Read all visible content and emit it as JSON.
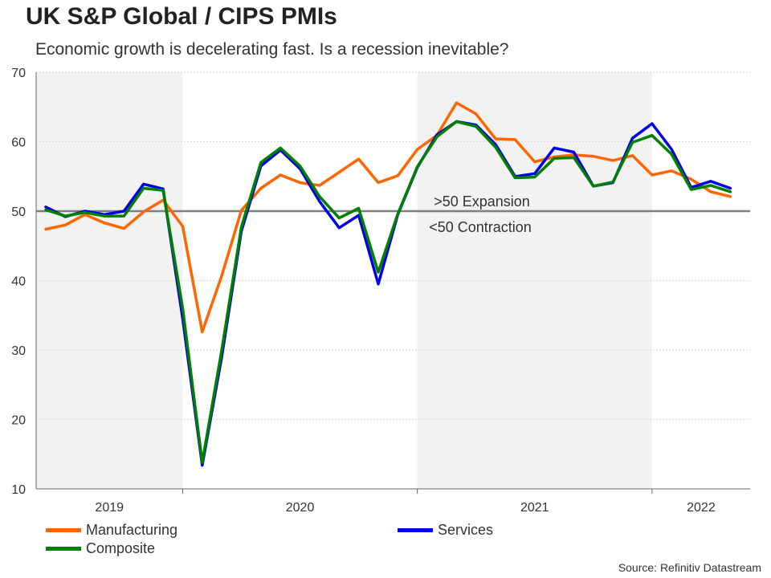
{
  "chart_data": {
    "type": "line",
    "title": "UK S&P Global / CIPS PMIs",
    "subtitle": "Economic growth is decelerating fast. Is a recession inevitable?",
    "source": "Source: Refinitiv Datastream",
    "ylim": [
      10,
      70
    ],
    "yticks": [
      "10",
      "20",
      "30",
      "40",
      "50",
      "60",
      "70"
    ],
    "year_labels": [
      "2019",
      "2020",
      "2021",
      "2022"
    ],
    "reference_line": {
      "value": 50,
      "label_above": ">50 Expansion",
      "label_below": "<50 Contraction"
    },
    "x_start": "2019-06",
    "series": [
      {
        "name": "Manufacturing",
        "color": "#ff6600",
        "values": [
          47.4,
          48.0,
          49.5,
          48.3,
          47.5,
          49.9,
          51.6,
          47.8,
          32.6,
          40.7,
          50.1,
          53.3,
          55.2,
          54.1,
          53.7,
          55.6,
          57.5,
          54.1,
          55.1,
          58.9,
          60.9,
          65.6,
          64.0,
          60.4,
          60.3,
          57.1,
          57.8,
          58.1,
          57.9,
          57.3,
          58.0,
          55.2,
          55.8,
          54.6,
          52.8,
          52.1
        ]
      },
      {
        "name": "Services",
        "color": "#0000e6",
        "values": [
          50.6,
          49.2,
          50.0,
          49.5,
          50.0,
          53.9,
          53.2,
          34.5,
          13.4,
          29.0,
          47.1,
          56.5,
          58.8,
          56.1,
          51.4,
          47.6,
          49.4,
          39.5,
          49.5,
          56.3,
          61.0,
          62.9,
          62.4,
          59.6,
          55.0,
          55.4,
          59.1,
          58.5,
          53.6,
          54.1,
          60.5,
          62.6,
          58.9,
          53.4,
          54.3,
          53.3
        ]
      },
      {
        "name": "Composite",
        "color": "#008000",
        "values": [
          50.2,
          49.3,
          49.8,
          49.3,
          49.3,
          53.3,
          53.0,
          36.0,
          13.8,
          30.0,
          47.7,
          57.0,
          59.1,
          56.5,
          52.1,
          49.0,
          50.4,
          41.2,
          49.6,
          56.4,
          60.7,
          62.9,
          62.2,
          59.2,
          54.8,
          54.9,
          57.6,
          57.7,
          53.6,
          54.2,
          59.9,
          60.9,
          58.2,
          53.1,
          53.7,
          52.8
        ]
      }
    ]
  }
}
